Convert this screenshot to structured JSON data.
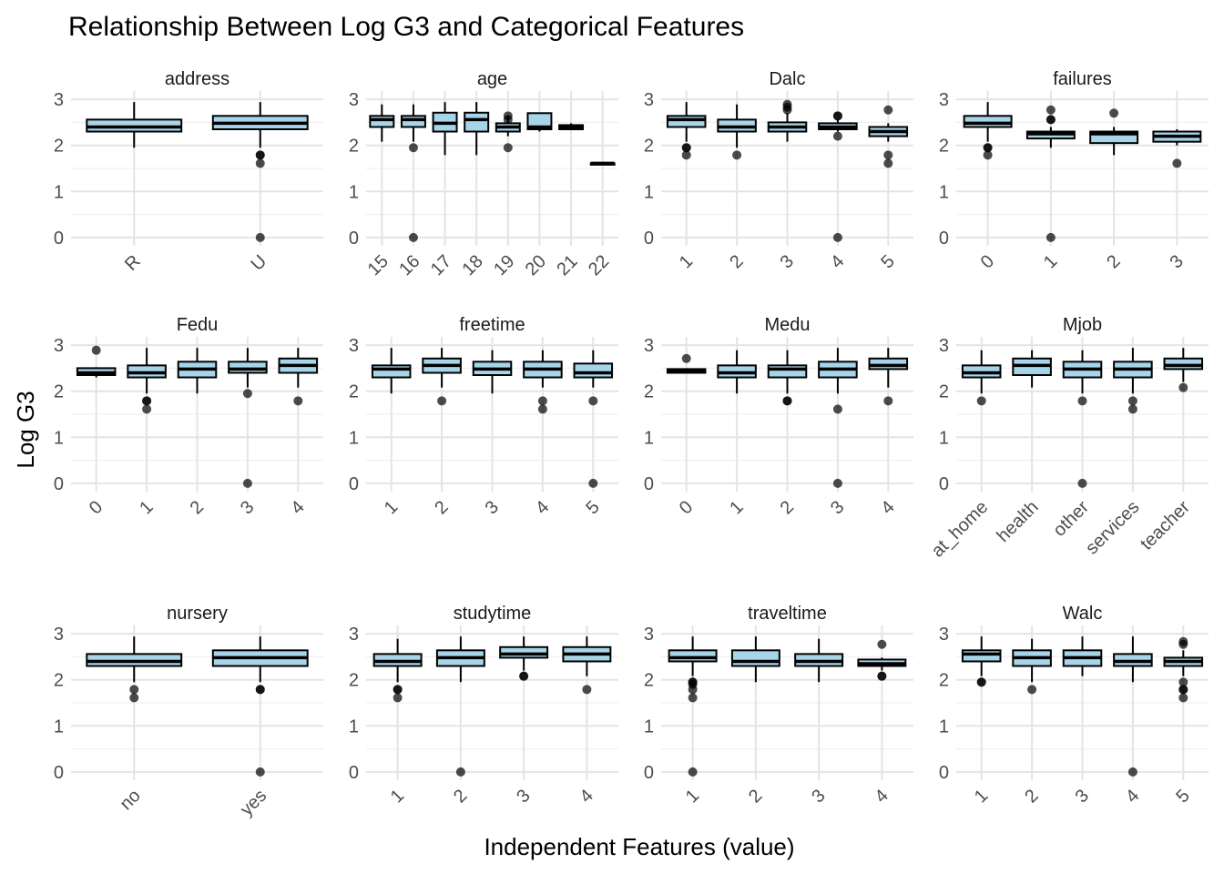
{
  "chart_data": {
    "type": "boxplot",
    "title": "Relationship Between Log G3 and Categorical Features",
    "xlabel": "Independent Features (value)",
    "ylabel": "Log G3",
    "ylim": [
      0,
      3
    ],
    "yticks": [
      "0",
      "1",
      "2",
      "3"
    ],
    "grid": true,
    "box_fill": "#a6d5ea",
    "box_stroke": "#000000",
    "outlier_color": "#000000",
    "panels": [
      {
        "name": "address",
        "categories": [
          "R",
          "U"
        ],
        "boxes": [
          {
            "lo": 1.95,
            "q1": 2.3,
            "med": 2.4,
            "q3": 2.56,
            "hi": 2.94,
            "out": []
          },
          {
            "lo": 1.95,
            "q1": 2.35,
            "med": 2.48,
            "q3": 2.64,
            "hi": 2.94,
            "out": [
              1.79,
              1.79,
              1.61,
              0
            ]
          }
        ]
      },
      {
        "name": "age",
        "categories": [
          "15",
          "16",
          "17",
          "18",
          "19",
          "20",
          "21",
          "22"
        ],
        "boxes": [
          {
            "lo": 2.08,
            "q1": 2.4,
            "med": 2.56,
            "q3": 2.64,
            "hi": 2.89,
            "out": []
          },
          {
            "lo": 2.08,
            "q1": 2.4,
            "med": 2.56,
            "q3": 2.64,
            "hi": 2.89,
            "out": [
              1.95,
              0
            ]
          },
          {
            "lo": 1.79,
            "q1": 2.3,
            "med": 2.48,
            "q3": 2.71,
            "hi": 2.94,
            "out": []
          },
          {
            "lo": 1.79,
            "q1": 2.3,
            "med": 2.56,
            "q3": 2.71,
            "hi": 2.94,
            "out": []
          },
          {
            "lo": 2.2,
            "q1": 2.3,
            "med": 2.4,
            "q3": 2.48,
            "hi": 2.64,
            "out": [
              2.64,
              2.56,
              1.95
            ]
          },
          {
            "lo": 2.3,
            "q1": 2.35,
            "med": 2.4,
            "q3": 2.7,
            "hi": 2.7,
            "out": []
          },
          {
            "lo": 2.35,
            "q1": 2.35,
            "med": 2.4,
            "q3": 2.44,
            "hi": 2.48,
            "out": []
          },
          {
            "lo": 1.61,
            "q1": 1.61,
            "med": 1.61,
            "q3": 1.61,
            "hi": 1.61,
            "out": []
          }
        ]
      },
      {
        "name": "Dalc",
        "categories": [
          "1",
          "2",
          "3",
          "4",
          "5"
        ],
        "boxes": [
          {
            "lo": 2.08,
            "q1": 2.4,
            "med": 2.56,
            "q3": 2.64,
            "hi": 2.94,
            "out": [
              1.95,
              1.95,
              1.79
            ]
          },
          {
            "lo": 1.95,
            "q1": 2.3,
            "med": 2.4,
            "q3": 2.56,
            "hi": 2.89,
            "out": [
              1.79
            ]
          },
          {
            "lo": 2.08,
            "q1": 2.3,
            "med": 2.4,
            "q3": 2.5,
            "hi": 2.7,
            "out": [
              2.89,
              2.83,
              2.77
            ]
          },
          {
            "lo": 2.3,
            "q1": 2.35,
            "med": 2.4,
            "q3": 2.48,
            "hi": 2.56,
            "out": [
              2.64,
              2.64,
              2.2,
              0
            ]
          },
          {
            "lo": 2.08,
            "q1": 2.2,
            "med": 2.3,
            "q3": 2.4,
            "hi": 2.48,
            "out": [
              2.77,
              1.79,
              1.61
            ]
          }
        ]
      },
      {
        "name": "failures",
        "categories": [
          "0",
          "1",
          "2",
          "3"
        ],
        "boxes": [
          {
            "lo": 2.08,
            "q1": 2.4,
            "med": 2.48,
            "q3": 2.64,
            "hi": 2.94,
            "out": [
              1.95,
              1.95,
              1.79
            ]
          },
          {
            "lo": 1.95,
            "q1": 2.15,
            "med": 2.25,
            "q3": 2.3,
            "hi": 2.4,
            "out": [
              2.77,
              2.56,
              2.56,
              0
            ]
          },
          {
            "lo": 1.79,
            "q1": 2.05,
            "med": 2.25,
            "q3": 2.3,
            "hi": 2.4,
            "out": [
              2.7
            ]
          },
          {
            "lo": 2.0,
            "q1": 2.08,
            "med": 2.2,
            "q3": 2.3,
            "hi": 2.35,
            "out": [
              1.61
            ]
          }
        ]
      },
      {
        "name": "Fedu",
        "categories": [
          "0",
          "1",
          "2",
          "3",
          "4"
        ],
        "boxes": [
          {
            "lo": 2.3,
            "q1": 2.35,
            "med": 2.4,
            "q3": 2.5,
            "hi": 2.52,
            "out": [
              2.89
            ]
          },
          {
            "lo": 1.95,
            "q1": 2.3,
            "med": 2.4,
            "q3": 2.56,
            "hi": 2.94,
            "out": [
              1.79,
              1.79,
              1.61
            ]
          },
          {
            "lo": 1.95,
            "q1": 2.3,
            "med": 2.48,
            "q3": 2.64,
            "hi": 2.94,
            "out": []
          },
          {
            "lo": 2.08,
            "q1": 2.4,
            "med": 2.48,
            "q3": 2.64,
            "hi": 2.94,
            "out": [
              1.95,
              0
            ]
          },
          {
            "lo": 2.08,
            "q1": 2.4,
            "med": 2.56,
            "q3": 2.71,
            "hi": 2.94,
            "out": [
              1.79
            ]
          }
        ]
      },
      {
        "name": "freetime",
        "categories": [
          "1",
          "2",
          "3",
          "4",
          "5"
        ],
        "boxes": [
          {
            "lo": 1.95,
            "q1": 2.3,
            "med": 2.48,
            "q3": 2.56,
            "hi": 2.94,
            "out": []
          },
          {
            "lo": 2.08,
            "q1": 2.4,
            "med": 2.56,
            "q3": 2.71,
            "hi": 2.94,
            "out": [
              1.79
            ]
          },
          {
            "lo": 1.95,
            "q1": 2.35,
            "med": 2.48,
            "q3": 2.64,
            "hi": 2.89,
            "out": []
          },
          {
            "lo": 2.08,
            "q1": 2.3,
            "med": 2.48,
            "q3": 2.64,
            "hi": 2.89,
            "out": [
              1.79,
              1.61
            ]
          },
          {
            "lo": 2.08,
            "q1": 2.3,
            "med": 2.4,
            "q3": 2.6,
            "hi": 2.89,
            "out": [
              1.79,
              0
            ]
          }
        ]
      },
      {
        "name": "Medu",
        "categories": [
          "0",
          "1",
          "2",
          "3",
          "4"
        ],
        "boxes": [
          {
            "lo": 2.4,
            "q1": 2.4,
            "med": 2.45,
            "q3": 2.48,
            "hi": 2.5,
            "out": [
              2.71
            ]
          },
          {
            "lo": 1.95,
            "q1": 2.3,
            "med": 2.4,
            "q3": 2.56,
            "hi": 2.89,
            "out": []
          },
          {
            "lo": 1.95,
            "q1": 2.3,
            "med": 2.48,
            "q3": 2.56,
            "hi": 2.89,
            "out": [
              1.79,
              1.79
            ]
          },
          {
            "lo": 1.95,
            "q1": 2.3,
            "med": 2.48,
            "q3": 2.64,
            "hi": 2.94,
            "out": [
              1.61,
              0
            ]
          },
          {
            "lo": 2.08,
            "q1": 2.48,
            "med": 2.56,
            "q3": 2.71,
            "hi": 2.94,
            "out": [
              1.79
            ]
          }
        ]
      },
      {
        "name": "Mjob",
        "categories": [
          "at_home",
          "health",
          "other",
          "services",
          "teacher"
        ],
        "boxes": [
          {
            "lo": 1.95,
            "q1": 2.3,
            "med": 2.4,
            "q3": 2.56,
            "hi": 2.89,
            "out": [
              1.79
            ]
          },
          {
            "lo": 2.08,
            "q1": 2.35,
            "med": 2.56,
            "q3": 2.71,
            "hi": 2.89,
            "out": []
          },
          {
            "lo": 1.95,
            "q1": 2.3,
            "med": 2.48,
            "q3": 2.64,
            "hi": 2.89,
            "out": [
              1.79,
              0
            ]
          },
          {
            "lo": 1.95,
            "q1": 2.3,
            "med": 2.48,
            "q3": 2.64,
            "hi": 2.94,
            "out": [
              1.79,
              1.61
            ]
          },
          {
            "lo": 2.2,
            "q1": 2.48,
            "med": 2.56,
            "q3": 2.71,
            "hi": 2.94,
            "out": [
              2.08
            ]
          }
        ]
      },
      {
        "name": "nursery",
        "categories": [
          "no",
          "yes"
        ],
        "boxes": [
          {
            "lo": 1.95,
            "q1": 2.3,
            "med": 2.4,
            "q3": 2.56,
            "hi": 2.94,
            "out": [
              1.79,
              1.61
            ]
          },
          {
            "lo": 1.95,
            "q1": 2.3,
            "med": 2.48,
            "q3": 2.64,
            "hi": 2.94,
            "out": [
              1.79,
              1.79,
              0
            ]
          }
        ]
      },
      {
        "name": "studytime",
        "categories": [
          "1",
          "2",
          "3",
          "4"
        ],
        "boxes": [
          {
            "lo": 1.95,
            "q1": 2.3,
            "med": 2.4,
            "q3": 2.56,
            "hi": 2.89,
            "out": [
              1.79,
              1.79,
              1.61
            ]
          },
          {
            "lo": 1.95,
            "q1": 2.3,
            "med": 2.48,
            "q3": 2.64,
            "hi": 2.94,
            "out": [
              0
            ]
          },
          {
            "lo": 2.2,
            "q1": 2.48,
            "med": 2.56,
            "q3": 2.71,
            "hi": 2.94,
            "out": [
              2.08,
              2.08
            ]
          },
          {
            "lo": 2.08,
            "q1": 2.4,
            "med": 2.56,
            "q3": 2.71,
            "hi": 2.94,
            "out": [
              1.79
            ]
          }
        ]
      },
      {
        "name": "traveltime",
        "categories": [
          "1",
          "2",
          "3",
          "4"
        ],
        "boxes": [
          {
            "lo": 2.08,
            "q1": 2.4,
            "med": 2.48,
            "q3": 2.64,
            "hi": 2.94,
            "out": [
              1.95,
              1.95,
              1.9,
              1.79,
              1.61,
              0
            ]
          },
          {
            "lo": 1.95,
            "q1": 2.3,
            "med": 2.4,
            "q3": 2.64,
            "hi": 2.94,
            "out": []
          },
          {
            "lo": 1.95,
            "q1": 2.3,
            "med": 2.4,
            "q3": 2.56,
            "hi": 2.89,
            "out": []
          },
          {
            "lo": 2.2,
            "q1": 2.3,
            "med": 2.35,
            "q3": 2.44,
            "hi": 2.48,
            "out": [
              2.77,
              2.08,
              2.08
            ]
          }
        ]
      },
      {
        "name": "Walc",
        "categories": [
          "1",
          "2",
          "3",
          "4",
          "5"
        ],
        "boxes": [
          {
            "lo": 2.08,
            "q1": 2.4,
            "med": 2.56,
            "q3": 2.64,
            "hi": 2.94,
            "out": [
              1.95,
              1.95
            ]
          },
          {
            "lo": 1.95,
            "q1": 2.3,
            "med": 2.48,
            "q3": 2.64,
            "hi": 2.89,
            "out": [
              1.79
            ]
          },
          {
            "lo": 2.08,
            "q1": 2.3,
            "med": 2.48,
            "q3": 2.64,
            "hi": 2.94,
            "out": []
          },
          {
            "lo": 1.95,
            "q1": 2.3,
            "med": 2.4,
            "q3": 2.56,
            "hi": 2.94,
            "out": [
              0
            ]
          },
          {
            "lo": 2.08,
            "q1": 2.3,
            "med": 2.4,
            "q3": 2.48,
            "hi": 2.64,
            "out": [
              2.83,
              2.77,
              1.95,
              1.79,
              1.79,
              1.61
            ]
          }
        ]
      }
    ]
  }
}
